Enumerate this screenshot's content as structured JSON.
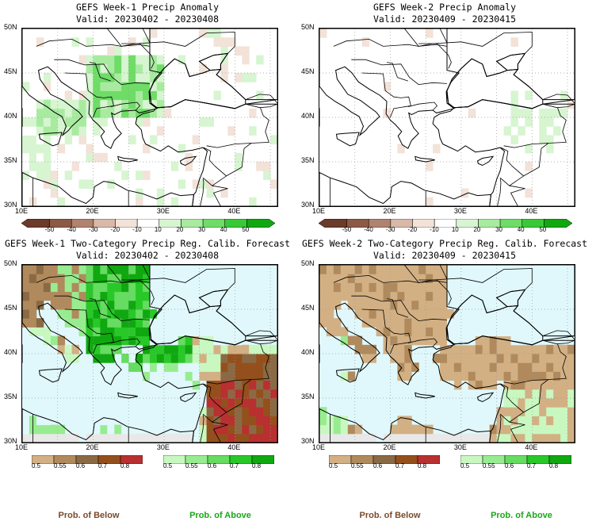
{
  "panels": [
    {
      "title": "GEFS Week-1 Precip Anomaly",
      "valid": "Valid: 20230402 - 20230408",
      "kind": "anomaly",
      "week": 1
    },
    {
      "title": "GEFS Week-2 Precip Anomaly",
      "valid": "Valid: 20230409 - 20230415",
      "kind": "anomaly",
      "week": 2
    },
    {
      "title": "GEFS Week-1 Two-Category Precip Reg. Calib. Forecast",
      "valid": "Valid: 20230402 - 20230408",
      "kind": "prob",
      "week": 1
    },
    {
      "title": "GEFS Week-2 Two-Category Precip Reg. Calib. Forecast",
      "valid": "Valid: 20230409 - 20230415",
      "kind": "prob",
      "week": 2
    }
  ],
  "axes": {
    "lat_labels": [
      "50N",
      "45N",
      "40N",
      "35N",
      "30N"
    ],
    "lon_labels": [
      "10E",
      "20E",
      "30E",
      "40E"
    ]
  },
  "anomaly_colorbar": {
    "labels": [
      "-50",
      "-40",
      "-30",
      "-20",
      "-10",
      "10",
      "20",
      "30",
      "40",
      "50"
    ],
    "colors": [
      "#6b3a2a",
      "#8c5a44",
      "#b08270",
      "#d8b8a8",
      "#f2e2d8",
      "#ffffff",
      "#d6f5d0",
      "#a8eba0",
      "#6edc66",
      "#38c838",
      "#10a810"
    ]
  },
  "below_colorbar": {
    "labels": [
      "0.5",
      "0.55",
      "0.6",
      "0.7",
      "0.8"
    ],
    "colors": [
      "#d2b084",
      "#b08a5c",
      "#8a6a44",
      "#94501c",
      "#b83030"
    ]
  },
  "above_colorbar": {
    "labels": [
      "0.5",
      "0.55",
      "0.6",
      "0.7",
      "0.8"
    ],
    "colors": [
      "#c8f8c0",
      "#98ec90",
      "#66dc60",
      "#28c828",
      "#10a810"
    ]
  },
  "legend": {
    "below_label": "Prob. of Below",
    "above_label": "Prob. of Above",
    "below_color": "#7a4a2a",
    "above_color": "#18a818"
  },
  "map_colors": {
    "sea_prob": "#e0f8fc",
    "land_outside": "#e8e8e8",
    "coast": "#000000"
  }
}
